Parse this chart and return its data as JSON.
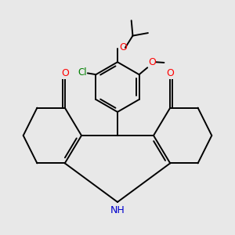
{
  "bg_color": "#e8e8e8",
  "bond_color": "#000000",
  "atom_colors": {
    "O": "#ff0000",
    "N": "#0000cc",
    "Cl": "#008000",
    "C": "#000000"
  },
  "lw": 1.4
}
